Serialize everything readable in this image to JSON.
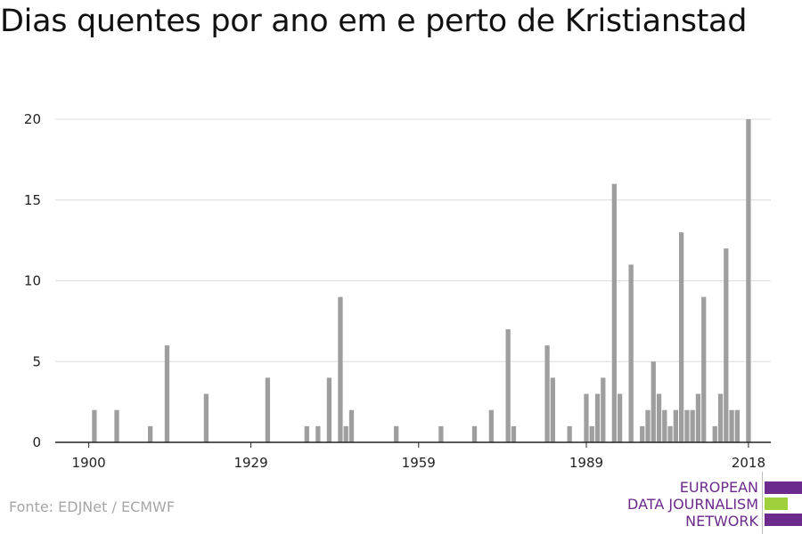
{
  "title": "Dias quentes por ano em e perto de Kristianstad",
  "source": "Fonte: EDJNet / ECMWF",
  "logo": {
    "lines": [
      "EUROPEAN",
      "DATA JOURNALISM",
      "NETWORK"
    ],
    "colors": {
      "purple": "#6c2a8c",
      "green": "#9ed13b"
    }
  },
  "colors": {
    "bar": "#9e9e9e",
    "grid": "#dcdcdc",
    "axis": "#222222"
  },
  "chart_data": {
    "type": "bar",
    "title": "Dias quentes por ano em e perto de Kristianstad",
    "xlabel": "",
    "ylabel": "",
    "xlim": [
      1894,
      2022
    ],
    "ylim": [
      0,
      20
    ],
    "x_ticks": [
      1900,
      1929,
      1959,
      1989,
      2018
    ],
    "y_ticks": [
      0,
      5,
      10,
      15,
      20
    ],
    "grid": true,
    "legend": "none",
    "points": [
      {
        "x": 1901,
        "y": 2
      },
      {
        "x": 1905,
        "y": 2
      },
      {
        "x": 1911,
        "y": 1
      },
      {
        "x": 1914,
        "y": 6
      },
      {
        "x": 1921,
        "y": 3
      },
      {
        "x": 1932,
        "y": 4
      },
      {
        "x": 1939,
        "y": 1
      },
      {
        "x": 1941,
        "y": 1
      },
      {
        "x": 1943,
        "y": 4
      },
      {
        "x": 1945,
        "y": 9
      },
      {
        "x": 1946,
        "y": 1
      },
      {
        "x": 1947,
        "y": 2
      },
      {
        "x": 1955,
        "y": 1
      },
      {
        "x": 1963,
        "y": 1
      },
      {
        "x": 1969,
        "y": 1
      },
      {
        "x": 1972,
        "y": 2
      },
      {
        "x": 1975,
        "y": 7
      },
      {
        "x": 1976,
        "y": 1
      },
      {
        "x": 1982,
        "y": 6
      },
      {
        "x": 1983,
        "y": 4
      },
      {
        "x": 1986,
        "y": 1
      },
      {
        "x": 1989,
        "y": 3
      },
      {
        "x": 1990,
        "y": 1
      },
      {
        "x": 1991,
        "y": 3
      },
      {
        "x": 1992,
        "y": 4
      },
      {
        "x": 1994,
        "y": 16
      },
      {
        "x": 1995,
        "y": 3
      },
      {
        "x": 1997,
        "y": 11
      },
      {
        "x": 1999,
        "y": 1
      },
      {
        "x": 2000,
        "y": 2
      },
      {
        "x": 2001,
        "y": 5
      },
      {
        "x": 2002,
        "y": 3
      },
      {
        "x": 2003,
        "y": 2
      },
      {
        "x": 2004,
        "y": 1
      },
      {
        "x": 2005,
        "y": 2
      },
      {
        "x": 2006,
        "y": 13
      },
      {
        "x": 2007,
        "y": 2
      },
      {
        "x": 2008,
        "y": 2
      },
      {
        "x": 2009,
        "y": 3
      },
      {
        "x": 2010,
        "y": 9
      },
      {
        "x": 2012,
        "y": 1
      },
      {
        "x": 2013,
        "y": 3
      },
      {
        "x": 2014,
        "y": 12
      },
      {
        "x": 2015,
        "y": 2
      },
      {
        "x": 2016,
        "y": 2
      },
      {
        "x": 2018,
        "y": 20
      }
    ]
  }
}
